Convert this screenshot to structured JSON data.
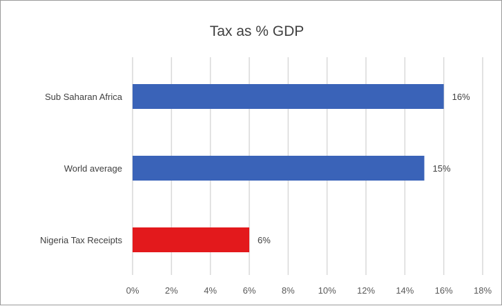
{
  "chart_data": {
    "type": "bar",
    "orientation": "horizontal",
    "title": "Tax as % GDP",
    "categories": [
      "Sub Saharan Africa",
      "World average",
      "Nigeria Tax Receipts"
    ],
    "values": [
      16,
      15,
      6
    ],
    "data_labels": [
      "16%",
      "15%",
      "6%"
    ],
    "bar_colors": [
      "#3a63b8",
      "#3a63b8",
      "#e3191c"
    ],
    "x_ticks": [
      "0%",
      "2%",
      "4%",
      "6%",
      "8%",
      "10%",
      "12%",
      "14%",
      "16%",
      "18%"
    ],
    "xlim": [
      0,
      18
    ],
    "xlabel": "",
    "ylabel": "",
    "grid": "vertical",
    "legend": "none"
  }
}
